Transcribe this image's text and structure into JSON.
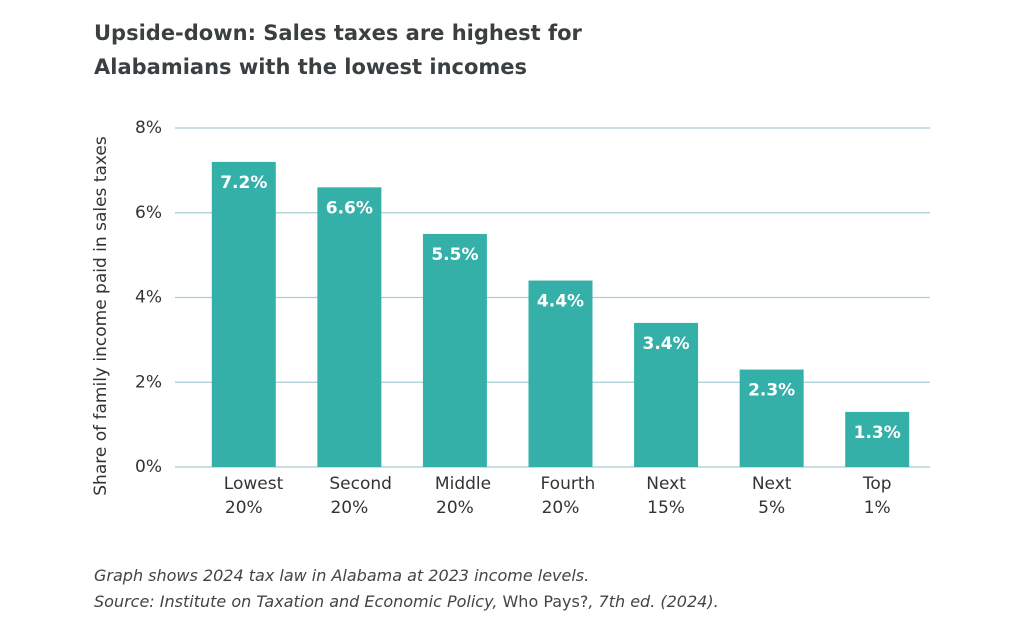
{
  "chart_data": {
    "type": "bar",
    "title": "Upside-down: Sales taxes are highest for Alabamians with the lowest incomes",
    "y_label": "Share of family income paid in sales taxes",
    "categories": [
      "Lowest 20%",
      "Second 20%",
      "Middle 20%",
      "Fourth 20%",
      "Next 15%",
      "Next 5%",
      "Top 1%"
    ],
    "values": [
      7.2,
      6.6,
      5.5,
      4.4,
      3.4,
      2.3,
      1.3
    ],
    "value_labels": [
      "7.2%",
      "6.6%",
      "5.5%",
      "4.4%",
      "3.4%",
      "2.3%",
      "1.3%"
    ],
    "color": "#35b0a8",
    "ylim": [
      0,
      8
    ],
    "yticks": [
      {
        "value": 0,
        "label": "0%"
      },
      {
        "value": 2,
        "label": "2%"
      },
      {
        "value": 4,
        "label": "4%"
      },
      {
        "value": 6,
        "label": "6%"
      },
      {
        "value": 8,
        "label": "8%"
      }
    ],
    "grid": true,
    "note": "Graph shows 2024 tax law in Alabama at 2023 income levels.",
    "source": {
      "prefix": "Source: Institute on Taxation and Economic Policy, ",
      "publication": "Who Pays?",
      "suffix": ", 7th ed. (2024)."
    }
  }
}
